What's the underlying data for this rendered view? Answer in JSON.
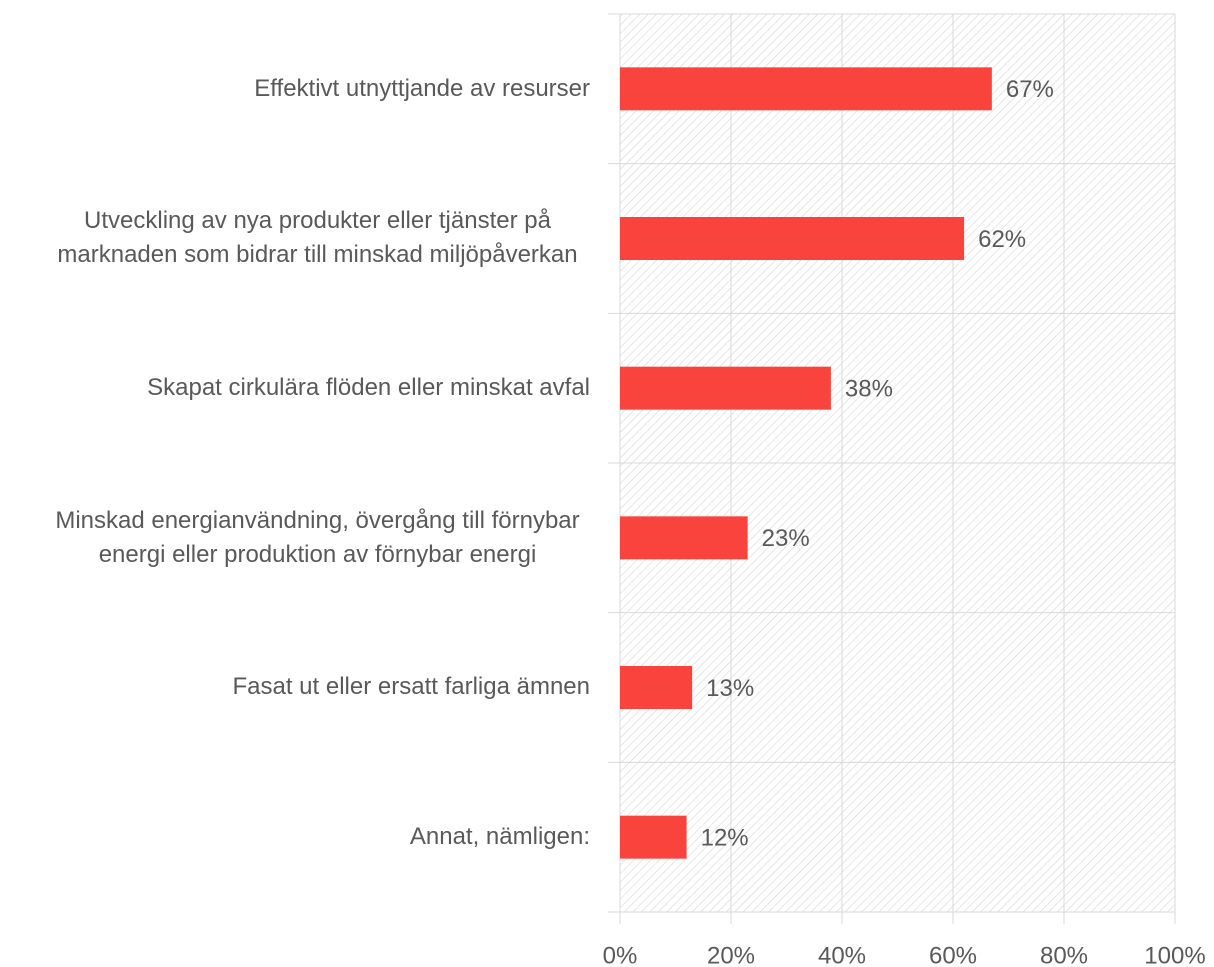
{
  "chart_data": {
    "type": "bar",
    "orientation": "horizontal",
    "categories": [
      "Effektivt utnyttjande av resurser",
      "Utveckling av nya produkter eller tjänster på marknaden som bidrar till minskad miljöpåverkan",
      "Skapat cirkulära flöden eller minskat avfal",
      "Minskad energianvändning, övergång till förnybar energi eller produktion av förnybar energi",
      "Fasat ut eller ersatt farliga ämnen",
      "Annat, nämligen:"
    ],
    "values": [
      67,
      62,
      38,
      23,
      13,
      12
    ],
    "value_labels": [
      "67%",
      "62%",
      "38%",
      "23%",
      "13%",
      "12%"
    ],
    "color": "#f9443e",
    "xlim": [
      0,
      100
    ],
    "xticks": [
      {
        "value": 0,
        "label": "0%"
      },
      {
        "value": 20,
        "label": "20%"
      },
      {
        "value": 40,
        "label": "40%"
      },
      {
        "value": 60,
        "label": "60%"
      },
      {
        "value": 80,
        "label": "80%"
      },
      {
        "value": 100,
        "label": "100%"
      }
    ],
    "grid": true
  }
}
